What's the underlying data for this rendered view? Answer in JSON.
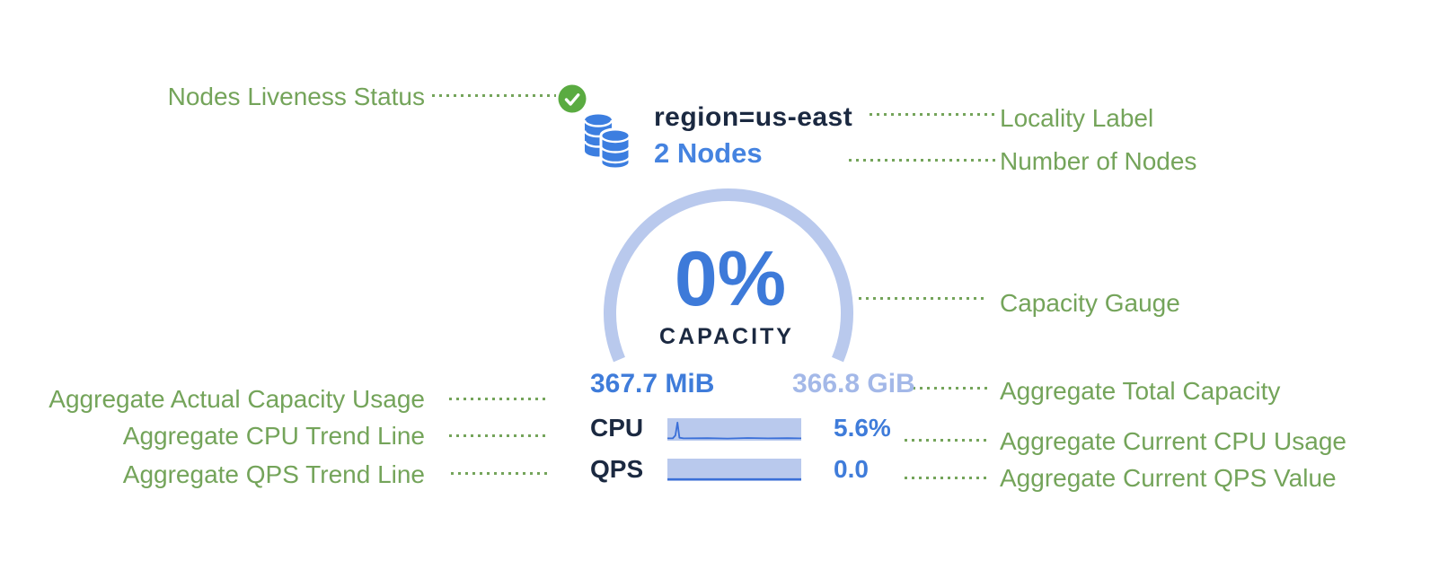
{
  "colors": {
    "annotation_green": "#74a45a",
    "check_green": "#5aab41",
    "db_blue": "#3c7ee0",
    "navy": "#1b2941",
    "accent_blue": "#3f7cda",
    "light_value_blue": "#a3b8e8",
    "gauge_track_blue": "#b9c9ed",
    "spark_line_blue": "#3a6fd8"
  },
  "node_card": {
    "liveness_status": "live",
    "locality_label": "region=us-east",
    "node_count": "2 Nodes",
    "gauge": {
      "percent_label": "0%",
      "percent_value": 0,
      "caption": "CAPACITY",
      "used_capacity": "367.7 MiB",
      "total_capacity": "366.8 GiB"
    },
    "metrics": [
      {
        "label": "CPU",
        "value": "5.6%"
      },
      {
        "label": "QPS",
        "value": "0.0"
      }
    ]
  },
  "annotations": {
    "left": [
      "Nodes Liveness Status",
      "Aggregate Actual Capacity Usage",
      "Aggregate CPU Trend Line",
      "Aggregate QPS Trend Line"
    ],
    "right": [
      "Locality Label",
      "Number of Nodes",
      "Capacity Gauge",
      "Aggregate Total Capacity",
      "Aggregate Current CPU Usage",
      "Aggregate Current QPS Value"
    ]
  },
  "chart_data": [
    {
      "type": "line",
      "name": "cpu-trend",
      "x_normalized": [
        0,
        0.04,
        0.06,
        0.075,
        0.09,
        0.12,
        0.3,
        0.45,
        0.6,
        0.75,
        0.9,
        1
      ],
      "values_normalized": [
        0.05,
        0.05,
        0.2,
        0.85,
        0.08,
        0.05,
        0.06,
        0.04,
        0.07,
        0.05,
        0.06,
        0.05
      ],
      "current_value": "5.6%"
    },
    {
      "type": "line",
      "name": "qps-trend",
      "x_normalized": [
        0,
        1
      ],
      "values_normalized": [
        0.02,
        0.02
      ],
      "current_value": "0.0"
    }
  ]
}
